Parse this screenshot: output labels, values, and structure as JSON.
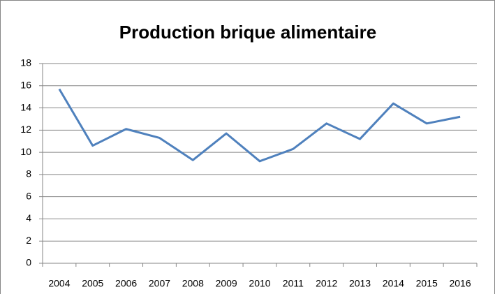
{
  "chart_data": {
    "type": "line",
    "title": "Production brique alimentaire",
    "categories": [
      "2004",
      "2005",
      "2006",
      "2007",
      "2008",
      "2009",
      "2010",
      "2011",
      "2012",
      "2013",
      "2014",
      "2015",
      "2016"
    ],
    "series": [
      {
        "name": "Production brique alimentaire",
        "color": "#4f81bd",
        "values": [
          15.7,
          10.6,
          12.1,
          11.3,
          9.3,
          11.7,
          9.2,
          10.3,
          12.6,
          11.2,
          14.4,
          12.6,
          13.2
        ]
      }
    ],
    "ylim": [
      0,
      18
    ],
    "yticks": [
      0,
      2,
      4,
      6,
      8,
      10,
      12,
      14,
      16,
      18
    ],
    "grid": true
  }
}
